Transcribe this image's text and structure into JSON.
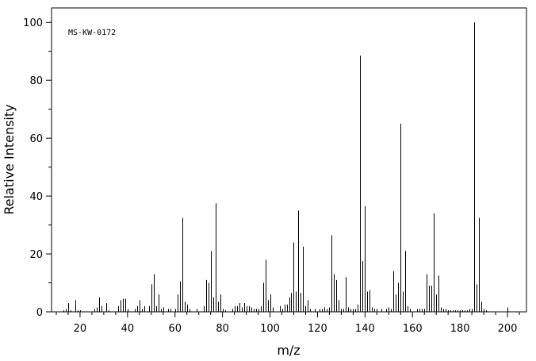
{
  "chart_data": {
    "type": "bar",
    "title": "",
    "annotation": "MS-KW-0172",
    "xlabel": "m/z",
    "ylabel": "Relative Intensity",
    "xlim": [
      8,
      208
    ],
    "ylim": [
      0,
      105
    ],
    "x_ticks": [
      20,
      40,
      60,
      80,
      100,
      120,
      140,
      160,
      180,
      200
    ],
    "y_ticks": [
      0,
      20,
      40,
      60,
      80,
      100
    ],
    "grid": false,
    "peaks": [
      {
        "x": 13,
        "y": 0.5
      },
      {
        "x": 14,
        "y": 1
      },
      {
        "x": 15,
        "y": 3
      },
      {
        "x": 16,
        "y": 0.5
      },
      {
        "x": 18,
        "y": 4
      },
      {
        "x": 19,
        "y": 0.5
      },
      {
        "x": 20,
        "y": 0.5
      },
      {
        "x": 26,
        "y": 1
      },
      {
        "x": 27,
        "y": 1.5
      },
      {
        "x": 28,
        "y": 5
      },
      {
        "x": 29,
        "y": 2
      },
      {
        "x": 31,
        "y": 3
      },
      {
        "x": 32,
        "y": 0.5
      },
      {
        "x": 36,
        "y": 2
      },
      {
        "x": 37,
        "y": 4
      },
      {
        "x": 38,
        "y": 4.5
      },
      {
        "x": 39,
        "y": 4.5
      },
      {
        "x": 40,
        "y": 1
      },
      {
        "x": 43,
        "y": 1
      },
      {
        "x": 44,
        "y": 2
      },
      {
        "x": 45,
        "y": 4
      },
      {
        "x": 46,
        "y": 1
      },
      {
        "x": 47,
        "y": 2
      },
      {
        "x": 49,
        "y": 2
      },
      {
        "x": 50,
        "y": 9.5
      },
      {
        "x": 51,
        "y": 13
      },
      {
        "x": 52,
        "y": 2
      },
      {
        "x": 53,
        "y": 6
      },
      {
        "x": 54,
        "y": 1
      },
      {
        "x": 55,
        "y": 1.5
      },
      {
        "x": 57,
        "y": 1
      },
      {
        "x": 58,
        "y": 1
      },
      {
        "x": 60,
        "y": 1
      },
      {
        "x": 61,
        "y": 6
      },
      {
        "x": 62,
        "y": 10.5
      },
      {
        "x": 63,
        "y": 32.5
      },
      {
        "x": 64,
        "y": 3.5
      },
      {
        "x": 65,
        "y": 2.5
      },
      {
        "x": 66,
        "y": 1
      },
      {
        "x": 69,
        "y": 1
      },
      {
        "x": 72,
        "y": 2
      },
      {
        "x": 73,
        "y": 11
      },
      {
        "x": 74,
        "y": 10
      },
      {
        "x": 75,
        "y": 21
      },
      {
        "x": 76,
        "y": 5
      },
      {
        "x": 77,
        "y": 37.5
      },
      {
        "x": 78,
        "y": 3.5
      },
      {
        "x": 79,
        "y": 6
      },
      {
        "x": 80,
        "y": 1
      },
      {
        "x": 81,
        "y": 0.5
      },
      {
        "x": 84,
        "y": 1
      },
      {
        "x": 85,
        "y": 2
      },
      {
        "x": 86,
        "y": 2
      },
      {
        "x": 87,
        "y": 3
      },
      {
        "x": 88,
        "y": 1.5
      },
      {
        "x": 89,
        "y": 3
      },
      {
        "x": 90,
        "y": 2
      },
      {
        "x": 91,
        "y": 2
      },
      {
        "x": 92,
        "y": 1.5
      },
      {
        "x": 93,
        "y": 1
      },
      {
        "x": 94,
        "y": 1
      },
      {
        "x": 95,
        "y": 1
      },
      {
        "x": 96,
        "y": 2
      },
      {
        "x": 97,
        "y": 10
      },
      {
        "x": 98,
        "y": 18
      },
      {
        "x": 99,
        "y": 4
      },
      {
        "x": 100,
        "y": 6
      },
      {
        "x": 101,
        "y": 1.5
      },
      {
        "x": 104,
        "y": 2
      },
      {
        "x": 105,
        "y": 1
      },
      {
        "x": 106,
        "y": 2.5
      },
      {
        "x": 107,
        "y": 2.5
      },
      {
        "x": 108,
        "y": 5
      },
      {
        "x": 109,
        "y": 6.5
      },
      {
        "x": 110,
        "y": 24
      },
      {
        "x": 111,
        "y": 7
      },
      {
        "x": 112,
        "y": 35
      },
      {
        "x": 113,
        "y": 6.5
      },
      {
        "x": 114,
        "y": 22.5
      },
      {
        "x": 115,
        "y": 2
      },
      {
        "x": 116,
        "y": 4
      },
      {
        "x": 117,
        "y": 1
      },
      {
        "x": 119,
        "y": 1
      },
      {
        "x": 121,
        "y": 1
      },
      {
        "x": 122,
        "y": 1
      },
      {
        "x": 123,
        "y": 1.5
      },
      {
        "x": 124,
        "y": 1
      },
      {
        "x": 125,
        "y": 1.5
      },
      {
        "x": 126,
        "y": 26.5
      },
      {
        "x": 127,
        "y": 13
      },
      {
        "x": 128,
        "y": 11
      },
      {
        "x": 129,
        "y": 4
      },
      {
        "x": 130,
        "y": 1
      },
      {
        "x": 131,
        "y": 1
      },
      {
        "x": 132,
        "y": 12
      },
      {
        "x": 133,
        "y": 1.5
      },
      {
        "x": 134,
        "y": 1
      },
      {
        "x": 135,
        "y": 1
      },
      {
        "x": 136,
        "y": 1
      },
      {
        "x": 137,
        "y": 2.5
      },
      {
        "x": 138,
        "y": 88.5
      },
      {
        "x": 139,
        "y": 17.5
      },
      {
        "x": 140,
        "y": 36.5
      },
      {
        "x": 141,
        "y": 7
      },
      {
        "x": 142,
        "y": 7.5
      },
      {
        "x": 143,
        "y": 1.5
      },
      {
        "x": 144,
        "y": 1
      },
      {
        "x": 145,
        "y": 1
      },
      {
        "x": 147,
        "y": 1
      },
      {
        "x": 149,
        "y": 1
      },
      {
        "x": 150,
        "y": 1.5
      },
      {
        "x": 151,
        "y": 1
      },
      {
        "x": 152,
        "y": 14
      },
      {
        "x": 153,
        "y": 6
      },
      {
        "x": 154,
        "y": 10
      },
      {
        "x": 155,
        "y": 65
      },
      {
        "x": 156,
        "y": 7
      },
      {
        "x": 157,
        "y": 21
      },
      {
        "x": 158,
        "y": 2
      },
      {
        "x": 159,
        "y": 1
      },
      {
        "x": 162,
        "y": 1
      },
      {
        "x": 163,
        "y": 1
      },
      {
        "x": 164,
        "y": 1
      },
      {
        "x": 165,
        "y": 1
      },
      {
        "x": 166,
        "y": 13
      },
      {
        "x": 167,
        "y": 9
      },
      {
        "x": 168,
        "y": 9
      },
      {
        "x": 169,
        "y": 34
      },
      {
        "x": 170,
        "y": 6
      },
      {
        "x": 171,
        "y": 12.5
      },
      {
        "x": 172,
        "y": 1.5
      },
      {
        "x": 173,
        "y": 1
      },
      {
        "x": 174,
        "y": 1
      },
      {
        "x": 175,
        "y": 0.5
      },
      {
        "x": 176,
        "y": 0.5
      },
      {
        "x": 177,
        "y": 0.5
      },
      {
        "x": 178,
        "y": 0.5
      },
      {
        "x": 179,
        "y": 0.5
      },
      {
        "x": 180,
        "y": 0.5
      },
      {
        "x": 181,
        "y": 0.5
      },
      {
        "x": 182,
        "y": 0.5
      },
      {
        "x": 183,
        "y": 0.5
      },
      {
        "x": 184,
        "y": 1
      },
      {
        "x": 185,
        "y": 1
      },
      {
        "x": 186,
        "y": 100
      },
      {
        "x": 187,
        "y": 9.5
      },
      {
        "x": 188,
        "y": 32.5
      },
      {
        "x": 189,
        "y": 3.5
      },
      {
        "x": 190,
        "y": 1
      },
      {
        "x": 191,
        "y": 0.5
      },
      {
        "x": 200,
        "y": 1.5
      }
    ]
  }
}
